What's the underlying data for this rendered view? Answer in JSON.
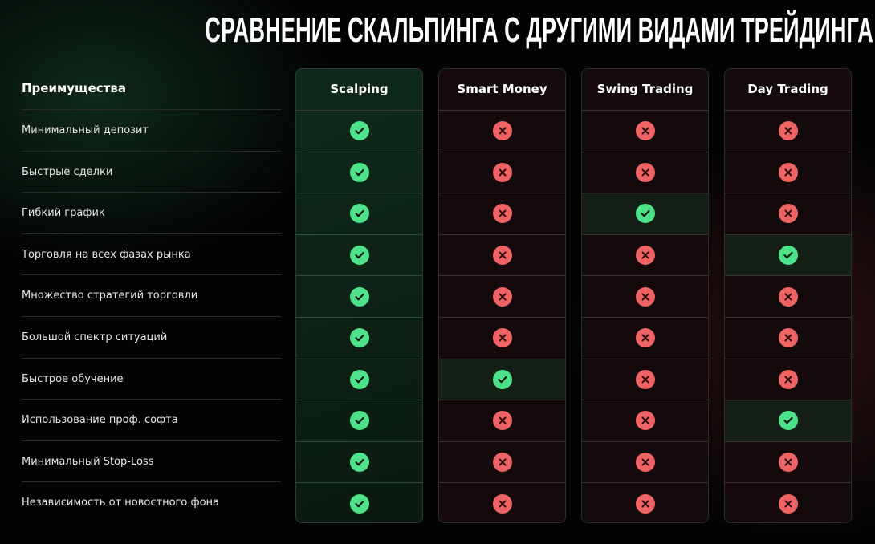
{
  "title": "СРАВНЕНИЕ СКАЛЬПИНГА С ДРУГИМИ ВИДАМИ ТРЕЙДИНГА",
  "labels_header": "Преимущества",
  "colors": {
    "check": "#4ee38a",
    "cross": "#ee6464"
  },
  "rows": [
    "Минимальный депозит",
    "Быстрые сделки",
    "Гибкий график",
    "Торговля на всех фазах рынка",
    "Множество стратегий торговли",
    "Большой спектр ситуаций",
    "Быстрое обучение",
    "Использование проф. софта",
    "Минимальный Stop-Loss",
    "Независимость от новостного фона"
  ],
  "columns": [
    {
      "name": "Scalping",
      "values": [
        true,
        true,
        true,
        true,
        true,
        true,
        true,
        true,
        true,
        true
      ]
    },
    {
      "name": "Smart Money",
      "values": [
        false,
        false,
        false,
        false,
        false,
        false,
        true,
        false,
        false,
        false
      ]
    },
    {
      "name": "Swing Trading",
      "values": [
        false,
        false,
        true,
        false,
        false,
        false,
        false,
        false,
        false,
        false
      ]
    },
    {
      "name": "Day Trading",
      "values": [
        false,
        false,
        false,
        true,
        false,
        false,
        false,
        true,
        false,
        false
      ]
    }
  ]
}
